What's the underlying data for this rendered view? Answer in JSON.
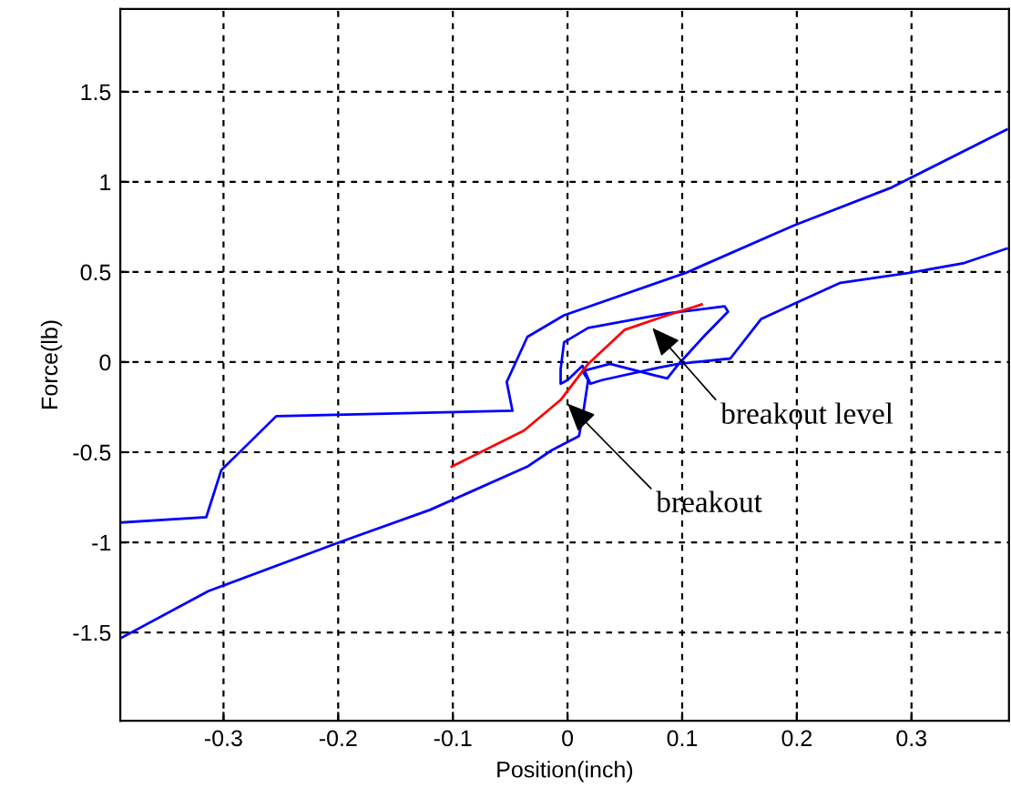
{
  "chart_data": {
    "type": "line",
    "xlabel": "Position(inch)",
    "ylabel": "Force(lb)",
    "xlim": [
      -0.39,
      0.385
    ],
    "ylim": [
      -1.99,
      1.96
    ],
    "xticks": [
      -0.3,
      -0.2,
      -0.1,
      0,
      0.1,
      0.2,
      0.3
    ],
    "yticks": [
      -1.5,
      -1,
      -0.5,
      0,
      0.5,
      1,
      1.5
    ],
    "grid": true,
    "legend": false,
    "series": [
      {
        "color": "#0000ff",
        "x": [
          -0.389,
          -0.315,
          -0.302,
          -0.254,
          -0.048,
          -0.053,
          -0.035,
          -0.003,
          0.103,
          0.198,
          0.283,
          0.383
        ],
        "values": [
          -0.89,
          -0.86,
          -0.6,
          -0.3,
          -0.27,
          -0.11,
          0.14,
          0.26,
          0.495,
          0.76,
          0.97,
          1.29
        ]
      },
      {
        "color": "#0000ff",
        "x": [
          -0.389,
          -0.313,
          -0.199,
          -0.12,
          -0.035,
          -0.014,
          0.01,
          0.013,
          0.018,
          0.013,
          0.037,
          0.074,
          0.087,
          0.097,
          0.12,
          0.14,
          0.137,
          0.087,
          0.018,
          -0.003,
          -0.006,
          -0.006,
          0.0,
          0.013,
          0.02,
          0.03,
          0.08,
          0.097,
          0.142,
          0.169,
          0.2,
          0.238,
          0.298,
          0.346,
          0.383
        ],
        "values": [
          -1.53,
          -1.27,
          -1.0,
          -0.82,
          -0.58,
          -0.49,
          -0.41,
          -0.31,
          -0.1,
          -0.05,
          -0.01,
          -0.07,
          -0.09,
          -0.01,
          0.15,
          0.28,
          0.31,
          0.27,
          0.19,
          0.11,
          -0.04,
          -0.12,
          -0.1,
          -0.02,
          -0.12,
          -0.1,
          -0.03,
          -0.01,
          0.02,
          0.24,
          0.33,
          0.44,
          0.495,
          0.55,
          0.63
        ]
      },
      {
        "color": "#ff0000",
        "x": [
          -0.101,
          -0.038,
          -0.006,
          0.018,
          0.05,
          0.087,
          0.117
        ],
        "values": [
          -0.58,
          -0.38,
          -0.21,
          -0.01,
          0.18,
          0.26,
          0.32
        ]
      }
    ],
    "annotations": [
      {
        "text": "breakout",
        "x": 0.0,
        "y": -0.23
      },
      {
        "text": "breakout level",
        "x": 0.074,
        "y": 0.19
      }
    ]
  }
}
